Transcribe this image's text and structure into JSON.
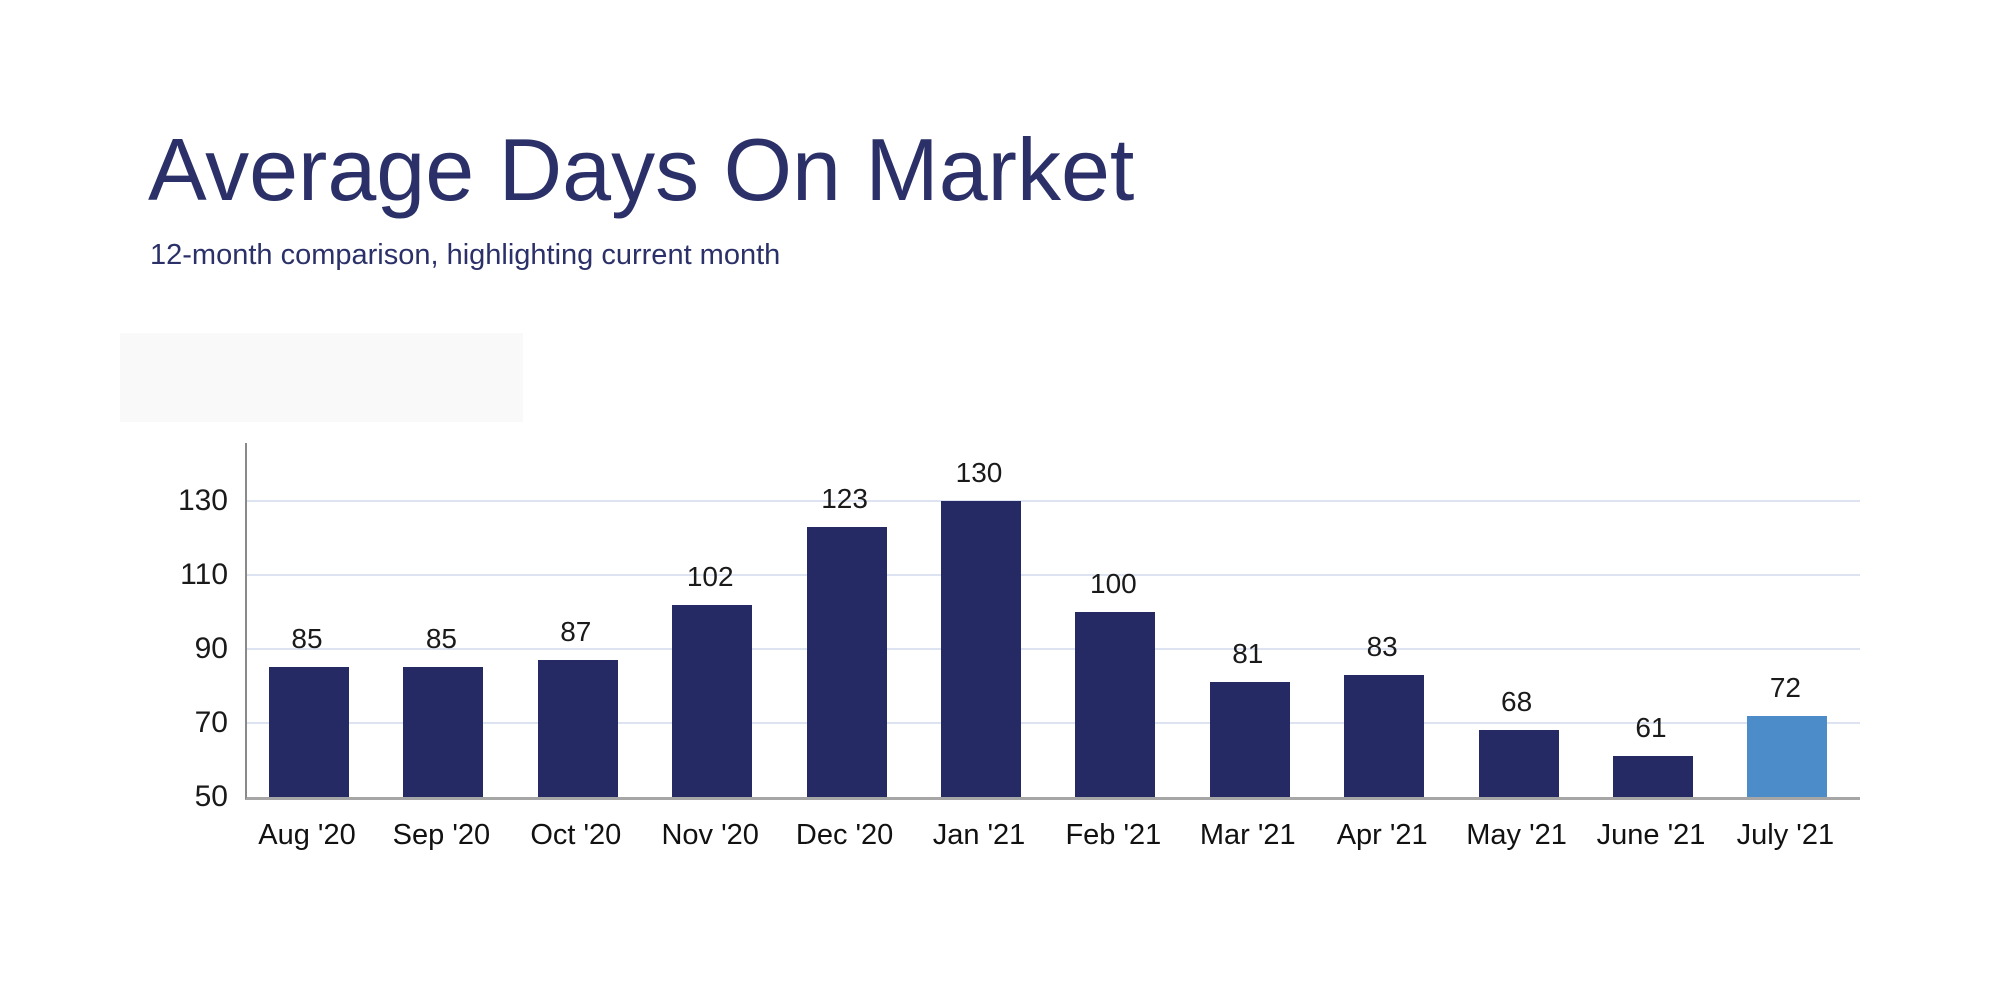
{
  "page": {
    "title": "Average Days On Market",
    "subtitle": "12-month comparison, highlighting current month"
  },
  "chart_data": {
    "type": "bar",
    "title": "Average Days On Market",
    "subtitle": "12-month comparison, highlighting current month",
    "categories": [
      "Aug '20",
      "Sep '20",
      "Oct '20",
      "Nov '20",
      "Dec '20",
      "Jan '21",
      "Feb '21",
      "Mar '21",
      "Apr '21",
      "May '21",
      "June '21",
      "July '21"
    ],
    "values": [
      85,
      85,
      87,
      102,
      123,
      130,
      100,
      81,
      83,
      68,
      61,
      72
    ],
    "data_labels_shown": true,
    "highlight_index": 11,
    "highlight_meaning": "current month",
    "xlabel": "",
    "ylabel": "",
    "ylim": [
      50,
      145
    ],
    "yticks": [
      50,
      70,
      90,
      110,
      130
    ],
    "grid": "horizontal",
    "legend": "none",
    "colors": {
      "bar_default": "#252a64",
      "bar_highlight": "#4c8cc8",
      "gridline": "#dde3f1",
      "axis_line": "#a6a6a6",
      "value_label": "#1a1a1a",
      "title_text": "#2b3168"
    }
  }
}
